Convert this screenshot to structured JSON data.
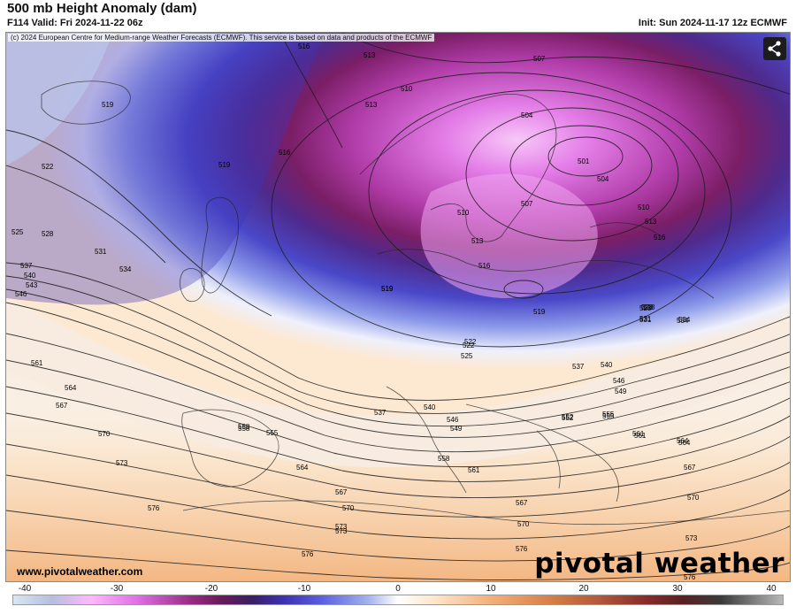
{
  "header": {
    "title": "500 mb Height Anomaly (dam)",
    "valid": "F114 Valid: Fri 2024-11-22 06z",
    "init": "Init: Sun 2024-11-17 12z ECMWF"
  },
  "map": {
    "copyright": "(c) 2024 European Centre for Medium-range Weather Forecasts (ECMWF). This service is based on data and products of the ECMWF",
    "website": "www.pivotalweather.com",
    "brand": "pivotal weather",
    "contour_labels": [
      "516",
      "513",
      "510",
      "507",
      "504",
      "501",
      "507",
      "504",
      "510",
      "513",
      "516",
      "519",
      "519",
      "522",
      "525",
      "528",
      "531",
      "534",
      "537",
      "540",
      "543",
      "546",
      "513",
      "516",
      "519",
      "516",
      "513",
      "510",
      "519",
      "522",
      "525",
      "528",
      "537",
      "540",
      "546",
      "549",
      "552",
      "555",
      "558",
      "561",
      "564",
      "567",
      "570",
      "573",
      "576",
      "561",
      "564",
      "567",
      "570",
      "573",
      "576",
      "555",
      "558",
      "561",
      "564",
      "567",
      "570",
      "573",
      "576",
      "519",
      "522",
      "528",
      "531",
      "534",
      "537",
      "540",
      "546",
      "549",
      "552",
      "555",
      "558",
      "561",
      "564",
      "567",
      "570",
      "573",
      "576",
      "528",
      "531",
      "534"
    ]
  },
  "colorbar": {
    "ticks": [
      "-40",
      "-30",
      "-20",
      "-10",
      "0",
      "10",
      "20",
      "30",
      "40"
    ]
  },
  "share_icon": "share-icon"
}
